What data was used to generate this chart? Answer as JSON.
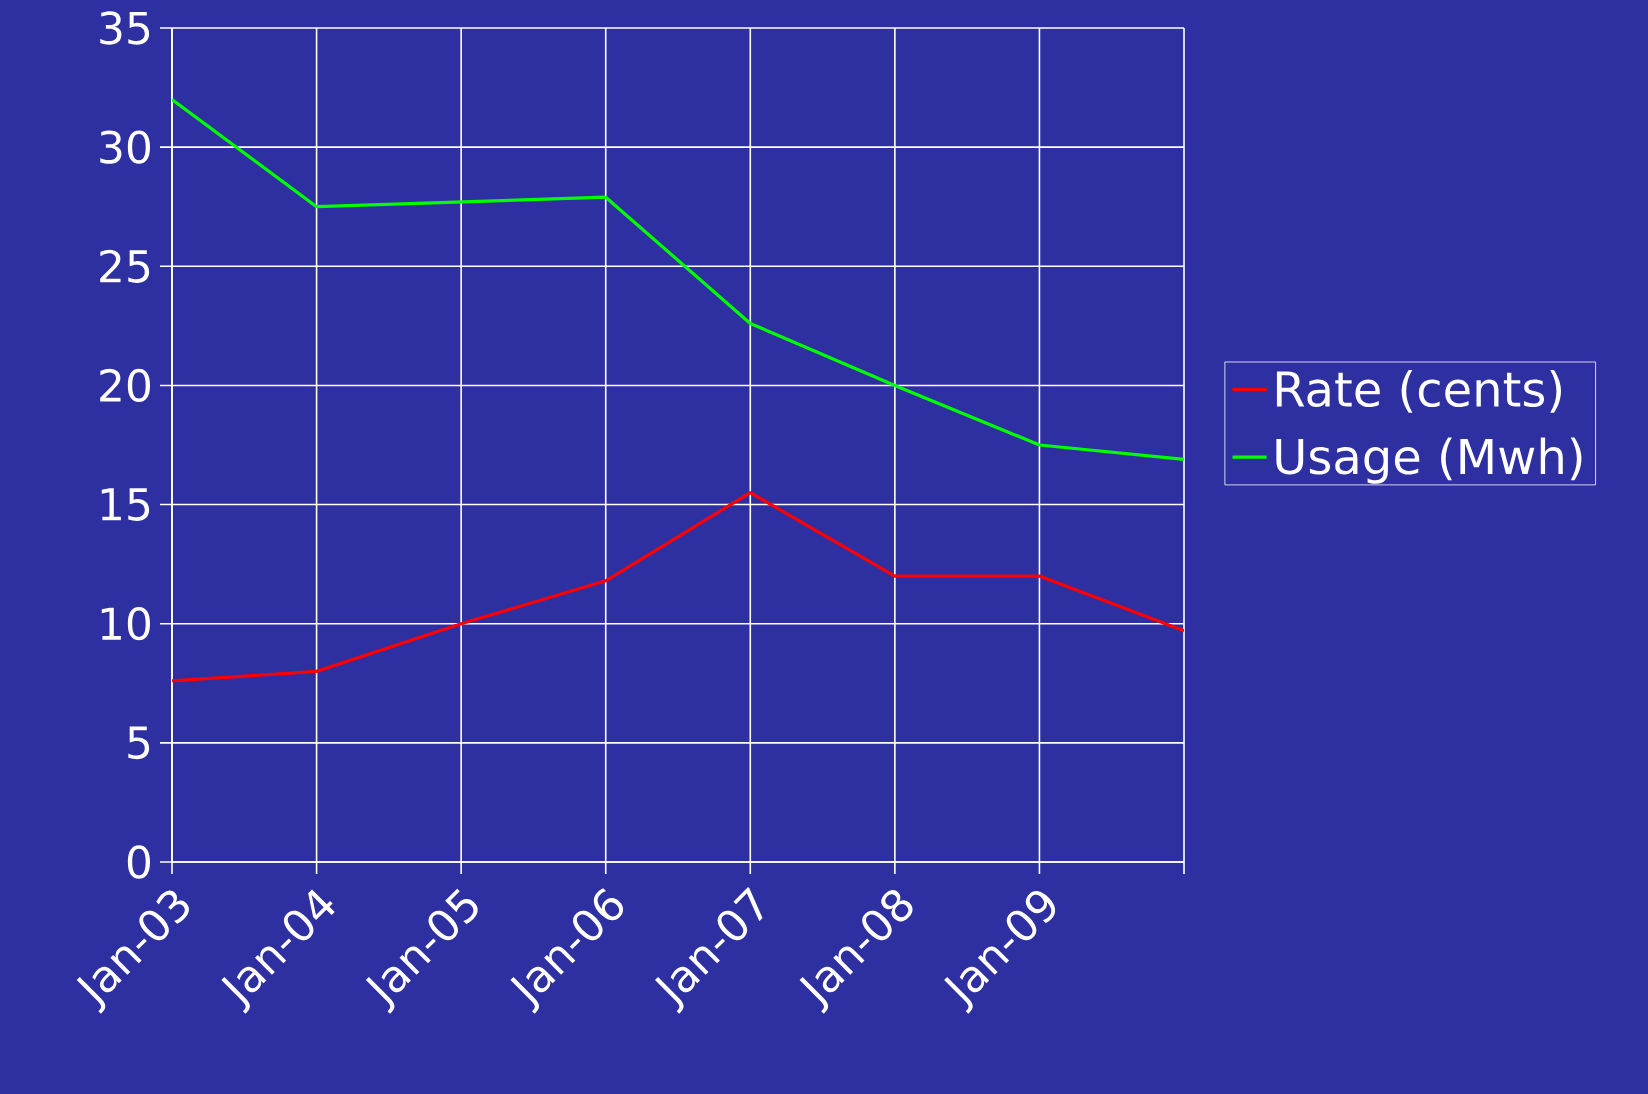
{
  "chart_data": {
    "type": "line",
    "categories": [
      "Jan-03",
      "Jan-04",
      "Jan-05",
      "Jan-06",
      "Jan-07",
      "Jan-08",
      "Jan-09",
      null
    ],
    "series": [
      {
        "name": "Rate (cents)",
        "color": "#ff0000",
        "values": [
          7.6,
          8.0,
          10.0,
          11.8,
          15.5,
          12.0,
          12.0,
          9.7
        ]
      },
      {
        "name": "Usage (Mwh)",
        "color": "#00ff00",
        "values": [
          32.0,
          27.5,
          27.7,
          27.9,
          22.6,
          20.0,
          17.5,
          16.9
        ]
      }
    ],
    "ylim": [
      0,
      35
    ],
    "yticks": [
      0,
      5,
      10,
      15,
      20,
      25,
      30,
      35
    ],
    "grid": true,
    "legend": "right",
    "marker": "none",
    "line_style": "solid"
  }
}
